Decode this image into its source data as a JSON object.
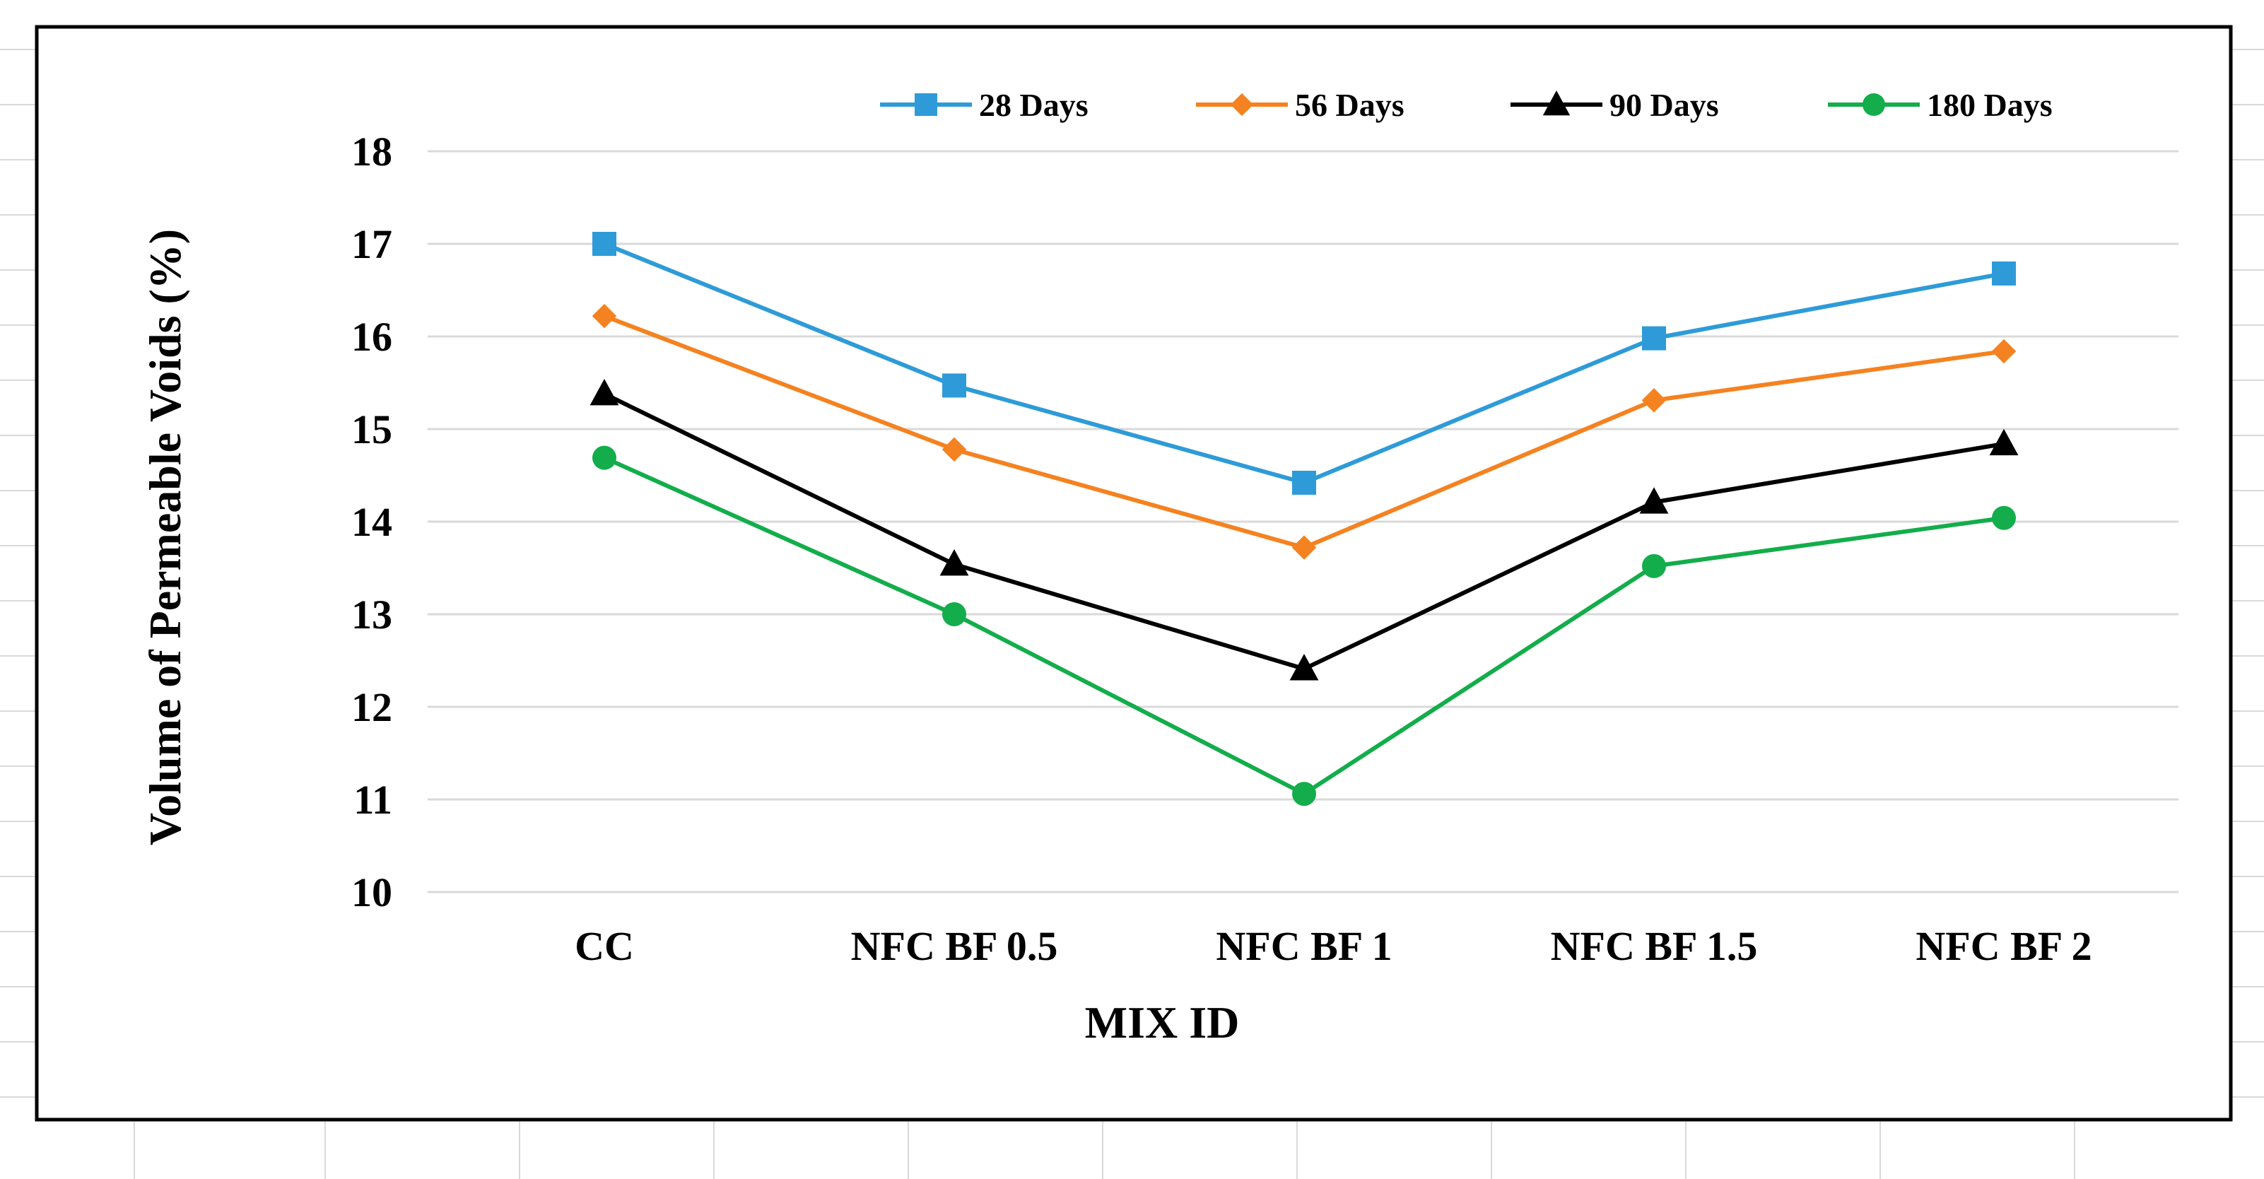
{
  "chart_data": {
    "type": "line",
    "title": "",
    "xlabel": "MIX ID",
    "ylabel": "Volume of Permeable Voids (%)",
    "categories": [
      "CC",
      "NFC BF 0.5",
      "NFC BF 1",
      "NFC BF 1.5",
      "NFC BF 2"
    ],
    "ylim": [
      10,
      18
    ],
    "yticks": [
      10,
      11,
      12,
      13,
      14,
      15,
      16,
      17,
      18
    ],
    "grid": true,
    "legend_position": "top",
    "series": [
      {
        "name": "28 Days",
        "color": "#2E9BD8",
        "marker": "square",
        "values": [
          17.0,
          15.47,
          14.42,
          15.98,
          16.68
        ]
      },
      {
        "name": "56 Days",
        "color": "#F58220",
        "marker": "diamond",
        "values": [
          16.22,
          14.78,
          13.72,
          15.31,
          15.84
        ]
      },
      {
        "name": "90 Days",
        "color": "#000000",
        "marker": "triangle",
        "values": [
          15.38,
          13.54,
          12.41,
          14.21,
          14.84
        ]
      },
      {
        "name": "180 Days",
        "color": "#13AD4B",
        "marker": "circle",
        "values": [
          14.69,
          13.0,
          11.06,
          13.52,
          14.04
        ]
      }
    ]
  }
}
